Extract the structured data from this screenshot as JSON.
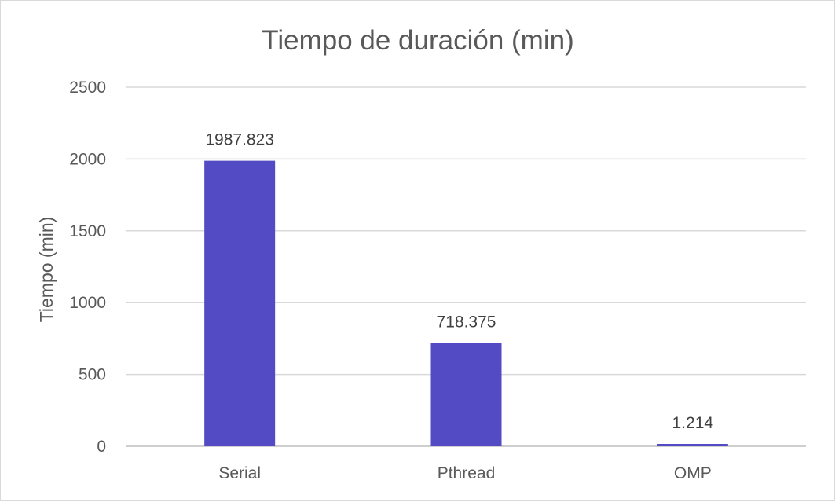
{
  "chart_data": {
    "type": "bar",
    "title": "Tiempo de duración (min)",
    "xlabel": "",
    "ylabel": "Tiempo (min)",
    "categories": [
      "Serial",
      "Pthread",
      "OMP"
    ],
    "values": [
      1987.823,
      718.375,
      1.214
    ],
    "data_labels": [
      "1987.823",
      "718.375",
      "1.214"
    ],
    "ylim": [
      0,
      2500
    ],
    "yticks": [
      0,
      500,
      1000,
      1500,
      2000,
      2500
    ],
    "ytick_labels": [
      "0",
      "500",
      "1000",
      "1500",
      "2000",
      "2500"
    ],
    "grid": true,
    "legend": "none",
    "bar_color": "#524BC4"
  }
}
